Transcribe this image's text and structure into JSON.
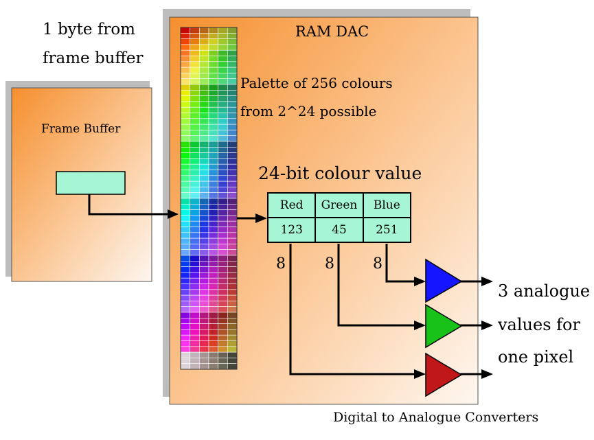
{
  "input_label": {
    "line1": "1 byte from",
    "line2": "frame buffer"
  },
  "frame_buffer": {
    "title": "Frame Buffer"
  },
  "ram_dac": {
    "title": "RAM DAC",
    "palette_line1": "Palette of 256 colours",
    "palette_line2": "from 2^24 possible"
  },
  "colour_value": {
    "title": "24-bit colour value",
    "headers": [
      "Red",
      "Green",
      "Blue"
    ],
    "values": [
      "123",
      "45",
      "251"
    ]
  },
  "bit_widths": [
    "8",
    "8",
    "8"
  ],
  "output_label": {
    "line1": "3 analogue",
    "line2": "values for",
    "line3": "one pixel"
  },
  "dac_label": "Digital to Analogue Converters",
  "colors": {
    "box_orange": "#f7a04a",
    "box_fade": "#fdf6ef",
    "shadow": "#bdbdbd",
    "cell_fill": "#a6f5d4",
    "dac_blue": "#1515ff",
    "dac_green": "#19c219",
    "dac_red": "#c01818"
  }
}
